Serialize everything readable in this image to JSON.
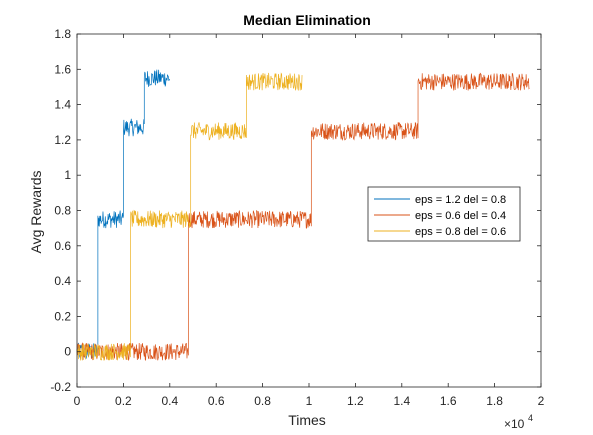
{
  "chart_data": {
    "type": "line",
    "title": "Median Elimination",
    "xlabel": "Times",
    "ylabel": "Avg Rewards",
    "x_exponent_label": "×10",
    "x_exponent_power": "4",
    "xlim": [
      0,
      20000
    ],
    "ylim": [
      -0.2,
      1.8
    ],
    "x_ticks": [
      0,
      2000,
      4000,
      6000,
      8000,
      10000,
      12000,
      14000,
      16000,
      18000,
      20000
    ],
    "x_tick_labels": [
      "0",
      "0.2",
      "0.4",
      "0.6",
      "0.8",
      "1",
      "1.2",
      "1.4",
      "1.6",
      "1.8",
      "2"
    ],
    "y_ticks": [
      -0.2,
      0,
      0.2,
      0.4,
      0.6,
      0.8,
      1,
      1.2,
      1.4,
      1.6,
      1.8
    ],
    "y_tick_labels": [
      "-0.2",
      "0",
      "0.2",
      "0.4",
      "0.6",
      "0.8",
      "1",
      "1.2",
      "1.4",
      "1.6",
      "1.8"
    ],
    "grid": false,
    "legend_position": "center-right",
    "noise_amplitude": 0.05,
    "series": [
      {
        "name": "eps = 1.2 del = 0.8",
        "color": "#0072BD",
        "segments": [
          {
            "x_start": 0,
            "x_end": 900,
            "y": 0.0
          },
          {
            "x_start": 900,
            "x_end": 2000,
            "y": 0.75
          },
          {
            "x_start": 2000,
            "x_end": 2900,
            "y": 1.27
          },
          {
            "x_start": 2900,
            "x_end": 4000,
            "y": 1.55
          }
        ]
      },
      {
        "name": "eps = 0.6 del = 0.4",
        "color": "#D95319",
        "segments": [
          {
            "x_start": 0,
            "x_end": 4800,
            "y": 0.0
          },
          {
            "x_start": 4800,
            "x_end": 10100,
            "y": 0.75
          },
          {
            "x_start": 10100,
            "x_end": 14700,
            "y": 1.25
          },
          {
            "x_start": 14700,
            "x_end": 19500,
            "y": 1.53
          }
        ]
      },
      {
        "name": "eps = 0.8 del = 0.6",
        "color": "#EDB120",
        "segments": [
          {
            "x_start": 0,
            "x_end": 2300,
            "y": 0.0
          },
          {
            "x_start": 2300,
            "x_end": 4900,
            "y": 0.75
          },
          {
            "x_start": 4900,
            "x_end": 7300,
            "y": 1.25
          },
          {
            "x_start": 7300,
            "x_end": 9700,
            "y": 1.53
          }
        ]
      }
    ]
  }
}
